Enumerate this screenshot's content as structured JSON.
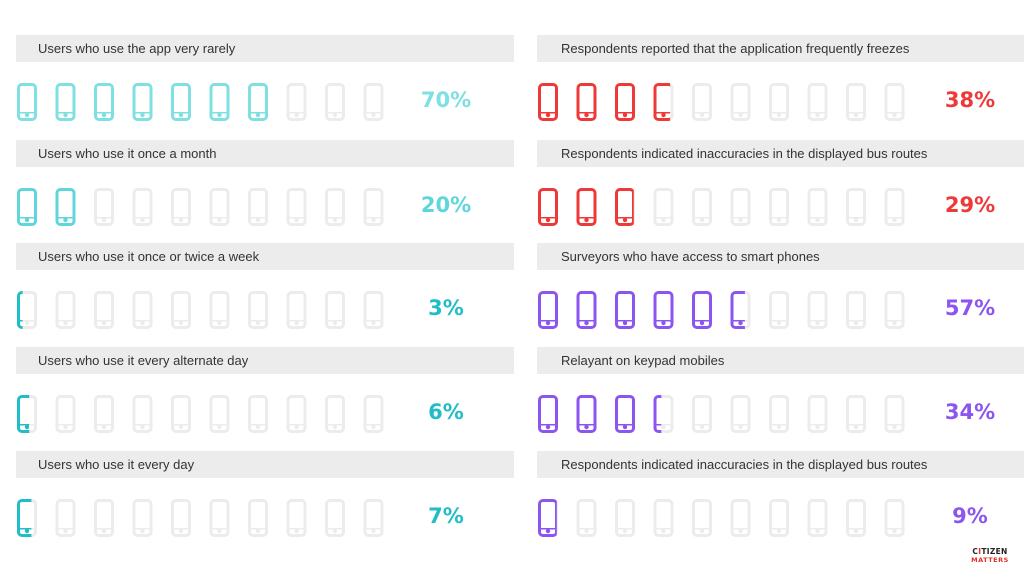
{
  "chart_data": [
    {
      "type": "pictogram",
      "label": "Users who use the app very rarely",
      "value": 70,
      "display": "70%",
      "color": "#7ee0e2"
    },
    {
      "type": "pictogram",
      "label": "Users who use it once a month",
      "value": 20,
      "display": "20%",
      "color": "#5ed6dc"
    },
    {
      "type": "pictogram",
      "label": "Users who use it once or twice a week",
      "value": 3,
      "display": "3%",
      "color": "#20bcc7"
    },
    {
      "type": "pictogram",
      "label": "Users who use it every alternate day",
      "value": 6,
      "display": "6%",
      "color": "#20bcc7"
    },
    {
      "type": "pictogram",
      "label": "Users who use it every day",
      "value": 7,
      "display": "7%",
      "color": "#20bcc7"
    },
    {
      "type": "pictogram",
      "label": "Respondents reported that the application frequently freezes",
      "value": 38,
      "display": "38%",
      "color": "#ef3939"
    },
    {
      "type": "pictogram",
      "label": "Respondents indicated inaccuracies in the displayed bus routes",
      "value": 29,
      "display": "29%",
      "color": "#ef3939"
    },
    {
      "type": "pictogram",
      "label": "Surveyors who have access to smart phones",
      "value": 57,
      "display": "57%",
      "color": "#8c55f0"
    },
    {
      "type": "pictogram",
      "label": "Relayant on keypad mobiles",
      "value": 34,
      "display": "34%",
      "color": "#8c55f0"
    },
    {
      "type": "pictogram",
      "label": "Respondents indicated inaccuracies in the displayed bus routes",
      "value": 9,
      "display": "9%",
      "color": "#8c55f0"
    }
  ],
  "empty_icon_color": "#ececec",
  "icon_name": "smartphone-icon",
  "icons_per_row": 10,
  "logo": {
    "line1_prefix": "C",
    "line1_accent": "I",
    "line1_rest": "TIZEN",
    "line2": "MATTERS"
  }
}
